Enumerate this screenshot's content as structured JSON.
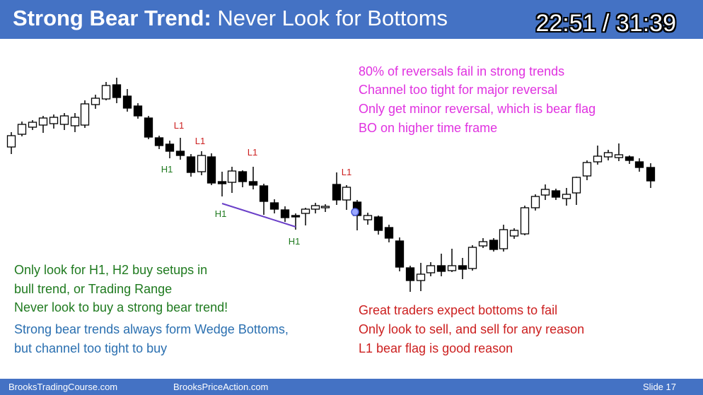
{
  "slide": {
    "title_bold": "Strong Bear Trend:",
    "title_rest": " Never Look for Bottoms",
    "timer": "22:51 / 31:39"
  },
  "notes": {
    "magenta": [
      "80% of reversals fail in strong trends",
      "Channel too tight for major reversal",
      "Only get minor reversal, which is bear flag",
      "BO on higher time frame"
    ],
    "green": [
      "Only look for H1, H2 buy setups in",
      "bull trend, or Trading Range",
      "Never look to buy a strong bear trend!"
    ],
    "blue": [
      "Strong bear trends always form Wedge Bottoms,",
      "but channel too tight to buy"
    ],
    "red": [
      "Great traders expect bottoms to fail",
      "Only look to sell, and sell for any reason",
      "L1 bear flag is good reason"
    ]
  },
  "bar_labels": {
    "l1": "L1",
    "h1": "H1"
  },
  "footer": {
    "left": "BrooksTradingCourse.com",
    "center": "BrooksPriceAction.com",
    "right": "Slide  17"
  },
  "colors": {
    "title_bar": "#4472c4",
    "magenta": "#e032e0",
    "green": "#1f7a1f",
    "blue": "#2a6fb0",
    "red": "#cc1f1f",
    "wedge_line": "#6a3fc8"
  }
}
